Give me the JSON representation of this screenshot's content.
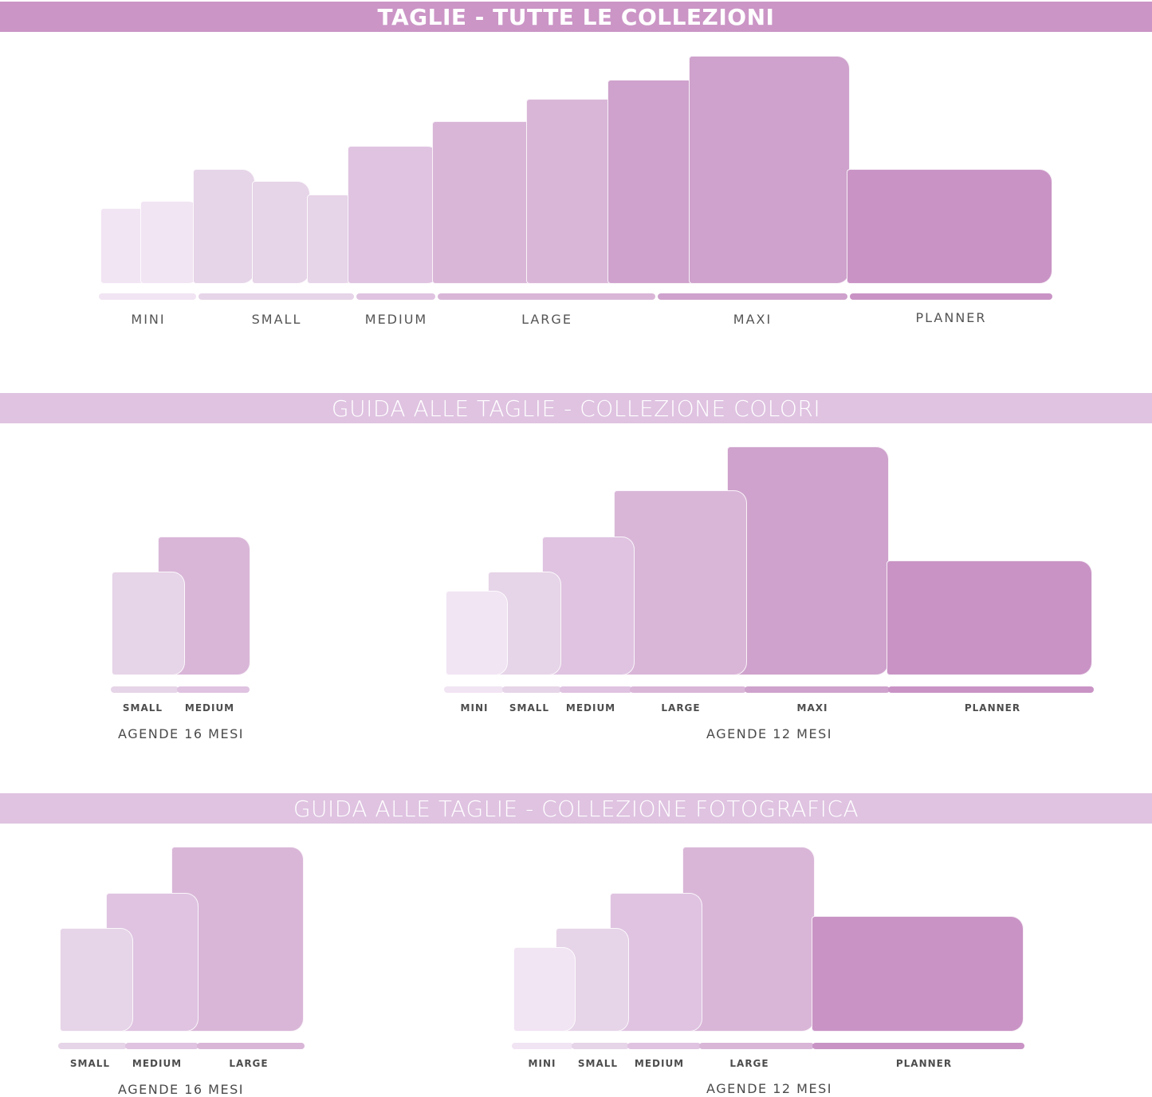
{
  "sections": {
    "all_collections": {
      "title": "TAGLIE - TUTTE LE COLLEZIONI",
      "size_labels": [
        "MINI",
        "SMALL",
        "MEDIUM",
        "LARGE",
        "MAXI",
        "PLANNER"
      ]
    },
    "colori": {
      "title": "GUIDA ALLE TAGLIE - COLLEZIONE COLORI",
      "group_16": {
        "caption": "AGENDE 16 MESI",
        "labels": [
          "SMALL",
          "MEDIUM"
        ]
      },
      "group_12": {
        "caption": "AGENDE 12 MESI",
        "labels": [
          "MINI",
          "SMALL",
          "MEDIUM",
          "LARGE",
          "MAXI",
          "PLANNER"
        ]
      }
    },
    "fotografica": {
      "title": "GUIDA ALLE TAGLIE - COLLEZIONE FOTOGRAFICA",
      "group_16": {
        "caption": "AGENDE 16 MESI",
        "labels": [
          "SMALL",
          "MEDIUM",
          "LARGE"
        ]
      },
      "group_12": {
        "caption": "AGENDE 12 MESI",
        "labels": [
          "MINI",
          "SMALL",
          "MEDIUM",
          "LARGE",
          "PLANNER"
        ]
      }
    }
  },
  "colors": {
    "MINI": "#f1e4f3",
    "SMALL": "#e6d4e8",
    "MEDIUM": "#dfc3e1",
    "LARGE": "#d9b6d8",
    "MAXI": "#cea2cc",
    "PLANNER": "#c994c5",
    "banner_main": "#cb95c6",
    "banner_sub": "#dfc3e1"
  }
}
